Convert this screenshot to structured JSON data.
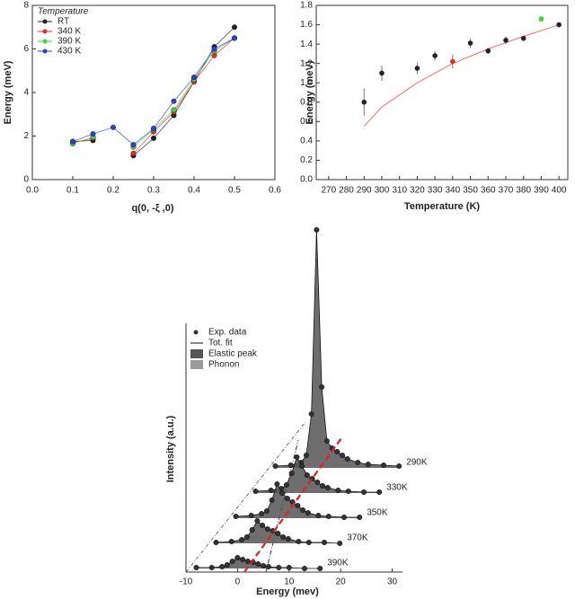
{
  "chart_data": [
    {
      "type": "line",
      "x_label": "q(0, -ξ ,0)",
      "y_label": "Energy (meV)",
      "legend_title": "Temperature",
      "x": [
        0.1,
        0.15,
        0.2,
        0.25,
        0.3,
        0.35,
        0.4,
        0.45,
        0.5
      ],
      "series": [
        {
          "name": "RT",
          "color": "#222222",
          "values": [
            1.75,
            1.8,
            null,
            1.1,
            1.9,
            2.95,
            4.5,
            6.1,
            7.0
          ]
        },
        {
          "name": "340 K",
          "color": "#e8282b",
          "values": [
            1.7,
            1.9,
            null,
            1.2,
            2.2,
            3.1,
            4.5,
            5.7,
            6.5
          ]
        },
        {
          "name": "390 K",
          "color": "#3ad63a",
          "values": [
            1.65,
            1.95,
            null,
            1.5,
            2.3,
            3.2,
            4.6,
            5.9,
            6.5
          ]
        },
        {
          "name": "430 K",
          "color": "#2d3fd8",
          "values": [
            1.75,
            2.1,
            2.4,
            1.6,
            2.35,
            3.6,
            4.7,
            6.0,
            6.5
          ]
        }
      ],
      "xlim": [
        0,
        0.6
      ],
      "xticks": [
        {
          "value": 0,
          "label": "0.0"
        },
        0.1,
        0.2,
        0.3,
        0.4,
        0.5,
        0.6
      ],
      "ylim": [
        0,
        8
      ],
      "yticks": [
        0,
        2,
        4,
        6,
        8
      ]
    },
    {
      "type": "errorbar",
      "x_label": "Temperature (K)",
      "y_label": "Energy (meV)",
      "x": [
        290,
        300,
        320,
        330,
        340,
        350,
        360,
        370,
        380,
        390,
        400
      ],
      "values": [
        0.8,
        1.1,
        1.15,
        1.28,
        1.22,
        1.41,
        1.33,
        1.44,
        1.46,
        1.66,
        1.6
      ],
      "errors": [
        0.14,
        0.08,
        0.06,
        0.05,
        0.07,
        0.05,
        0.03,
        0.04,
        0.03,
        0.03,
        0.02
      ],
      "colors": [
        "#222222",
        "#222222",
        "#222222",
        "#222222",
        "#e8282b",
        "#222222",
        "#222222",
        "#222222",
        "#222222",
        "#3ad63a",
        "#222222"
      ],
      "fit": {
        "color": "#f07070",
        "x": [
          290,
          300,
          320,
          340,
          360,
          380,
          400
        ],
        "values": [
          0.55,
          0.75,
          1.0,
          1.2,
          1.35,
          1.48,
          1.6
        ]
      },
      "xlim": [
        263,
        405
      ],
      "xticks": [
        270,
        280,
        290,
        300,
        310,
        320,
        330,
        340,
        350,
        360,
        370,
        380,
        390,
        400
      ],
      "ylim": [
        0,
        1.8
      ],
      "yticks": [
        {
          "value": 0,
          "label": "0.0"
        },
        0.2,
        0.4,
        0.6,
        0.8,
        {
          "value": 1,
          "label": "1.0"
        },
        1.2,
        1.4,
        1.6,
        1.8
      ]
    },
    {
      "type": "waterfall",
      "x_label": "Energy (mev)",
      "y_label": "Intensity (a.u.)",
      "legend": [
        "Exp. data",
        "Tot. fit",
        "Elastic peak",
        "Phonon"
      ],
      "fill_colors": [
        "#555555",
        "#9a9a9a"
      ],
      "x": [
        -8,
        -5,
        -3,
        -2,
        -1,
        0,
        1,
        2,
        3,
        4,
        5,
        6,
        8,
        10,
        13,
        16
      ],
      "series": [
        {
          "name": "290K",
          "values": [
            2,
            3,
            6,
            14,
            60,
            265,
            90,
            30,
            22,
            18,
            14,
            10,
            6,
            4,
            3,
            2
          ]
        },
        {
          "name": "330K",
          "values": [
            2,
            3,
            5,
            9,
            22,
            40,
            30,
            20,
            16,
            12,
            8,
            6,
            3,
            2,
            1,
            1
          ]
        },
        {
          "name": "350K",
          "values": [
            2,
            3,
            5,
            8,
            20,
            38,
            28,
            22,
            18,
            14,
            9,
            6,
            3,
            2,
            1,
            1
          ]
        },
        {
          "name": "370K",
          "values": [
            1,
            2,
            4,
            7,
            15,
            25,
            20,
            16,
            14,
            11,
            7,
            5,
            2,
            1,
            1,
            0
          ]
        },
        {
          "name": "390K",
          "values": [
            1,
            1,
            2,
            4,
            8,
            12,
            10,
            8,
            7,
            5,
            3,
            2,
            1,
            1,
            0,
            0
          ]
        }
      ],
      "xlim": [
        -10,
        32
      ],
      "xticks": [
        -10,
        0,
        10,
        20,
        30
      ]
    }
  ]
}
